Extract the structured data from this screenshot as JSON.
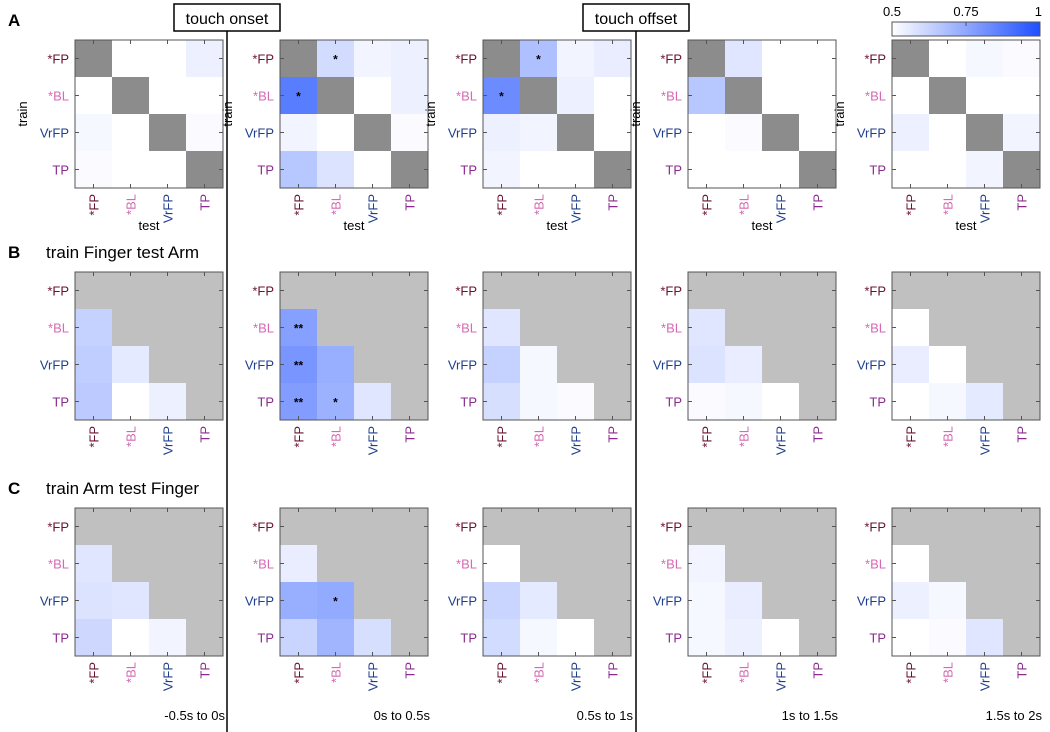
{
  "chart_data": {
    "type": "heatmap",
    "colorscale": {
      "min": 0.5,
      "max": 1,
      "low_color": "#ffffff",
      "high_color": "#1f4fff",
      "diagonal_color": "#8c8c8c",
      "masked_color": "#c0c0c0",
      "tick_labels": [
        "0.5",
        "0.75",
        "1"
      ]
    },
    "categories": [
      "*FP",
      "*BL",
      "VrFP",
      "TP"
    ],
    "category_colors": [
      "#6b1230",
      "#d46ab3",
      "#1f3e8c",
      "#8a2a8e"
    ],
    "xlabel": "test",
    "ylabel": "train",
    "time_windows": [
      "-0.5s to 0s",
      "0s to 0.5s",
      "0.5s to 1s",
      "1s to 1.5s",
      "1.5s to 2s"
    ],
    "events": [
      "touch onset",
      "touch offset"
    ],
    "rows": [
      {
        "letter": "A",
        "title": "",
        "mode": "full",
        "matrices": [
          [
            [
              null,
              0.5,
              0.5,
              0.54
            ],
            [
              0.5,
              null,
              0.5,
              0.5
            ],
            [
              0.52,
              0.5,
              null,
              0.51
            ],
            [
              0.51,
              0.5,
              0.5,
              null
            ]
          ],
          [
            [
              null,
              0.6,
              0.53,
              0.54
            ],
            [
              0.87,
              null,
              0.5,
              0.54
            ],
            [
              0.53,
              0.5,
              null,
              0.51
            ],
            [
              0.66,
              0.58,
              0.5,
              null
            ]
          ],
          [
            [
              null,
              0.68,
              0.53,
              0.55
            ],
            [
              0.83,
              null,
              0.54,
              0.5
            ],
            [
              0.54,
              0.53,
              null,
              0.5
            ],
            [
              0.53,
              0.5,
              0.5,
              null
            ]
          ],
          [
            [
              null,
              0.57,
              0.5,
              0.5
            ],
            [
              0.66,
              null,
              0.5,
              0.5
            ],
            [
              0.5,
              0.51,
              null,
              0.5
            ],
            [
              0.5,
              0.5,
              0.5,
              null
            ]
          ],
          [
            [
              null,
              0.5,
              0.52,
              0.51
            ],
            [
              0.5,
              null,
              0.5,
              0.5
            ],
            [
              0.54,
              0.5,
              null,
              0.53
            ],
            [
              0.5,
              0.5,
              0.53,
              null
            ]
          ]
        ],
        "stars": [
          [],
          [
            {
              "row": 0,
              "col": 1,
              "mark": "*"
            },
            {
              "row": 1,
              "col": 0,
              "mark": "*"
            }
          ],
          [
            {
              "row": 0,
              "col": 1,
              "mark": "*"
            },
            {
              "row": 1,
              "col": 0,
              "mark": "*"
            }
          ],
          [],
          []
        ]
      },
      {
        "letter": "B",
        "title": "train Finger test Arm",
        "mode": "lower",
        "matrices": [
          [
            [
              null,
              null,
              null,
              null
            ],
            [
              0.63,
              null,
              null,
              null
            ],
            [
              0.64,
              0.56,
              null,
              null
            ],
            [
              0.65,
              0.5,
              0.54,
              null
            ]
          ],
          [
            [
              null,
              null,
              null,
              null
            ],
            [
              0.77,
              null,
              null,
              null
            ],
            [
              0.8,
              0.73,
              null,
              null
            ],
            [
              0.78,
              0.72,
              0.57,
              null
            ]
          ],
          [
            [
              null,
              null,
              null,
              null
            ],
            [
              0.57,
              null,
              null,
              null
            ],
            [
              0.63,
              0.52,
              null,
              null
            ],
            [
              0.59,
              0.52,
              0.51,
              null
            ]
          ],
          [
            [
              null,
              null,
              null,
              null
            ],
            [
              0.57,
              null,
              null,
              null
            ],
            [
              0.58,
              0.55,
              null,
              null
            ],
            [
              0.51,
              0.52,
              0.5,
              null
            ]
          ],
          [
            [
              null,
              null,
              null,
              null
            ],
            [
              0.5,
              null,
              null,
              null
            ],
            [
              0.55,
              0.5,
              null,
              null
            ],
            [
              0.5,
              0.52,
              0.56,
              null
            ]
          ]
        ],
        "stars": [
          [],
          [
            {
              "row": 1,
              "col": 0,
              "mark": "**"
            },
            {
              "row": 2,
              "col": 0,
              "mark": "**"
            },
            {
              "row": 3,
              "col": 0,
              "mark": "**"
            },
            {
              "row": 3,
              "col": 1,
              "mark": "*"
            }
          ],
          [],
          [],
          []
        ]
      },
      {
        "letter": "C",
        "title": "train Arm test Finger",
        "mode": "lower",
        "matrices": [
          [
            [
              null,
              null,
              null,
              null
            ],
            [
              0.57,
              null,
              null,
              null
            ],
            [
              0.58,
              0.57,
              null,
              null
            ],
            [
              0.61,
              0.5,
              0.53,
              null
            ]
          ],
          [
            [
              null,
              null,
              null,
              null
            ],
            [
              0.55,
              null,
              null,
              null
            ],
            [
              0.73,
              0.74,
              null,
              null
            ],
            [
              0.62,
              0.71,
              0.59,
              null
            ]
          ],
          [
            [
              null,
              null,
              null,
              null
            ],
            [
              0.5,
              null,
              null,
              null
            ],
            [
              0.62,
              0.56,
              null,
              null
            ],
            [
              0.6,
              0.52,
              0.5,
              null
            ]
          ],
          [
            [
              null,
              null,
              null,
              null
            ],
            [
              0.53,
              null,
              null,
              null
            ],
            [
              0.52,
              0.55,
              null,
              null
            ],
            [
              0.52,
              0.54,
              0.5,
              null
            ]
          ],
          [
            [
              null,
              null,
              null,
              null
            ],
            [
              0.5,
              null,
              null,
              null
            ],
            [
              0.54,
              0.52,
              null,
              null
            ],
            [
              0.5,
              0.51,
              0.57,
              null
            ]
          ]
        ],
        "stars": [
          [],
          [
            {
              "row": 2,
              "col": 1,
              "mark": "*"
            }
          ],
          [],
          [],
          []
        ]
      }
    ]
  }
}
